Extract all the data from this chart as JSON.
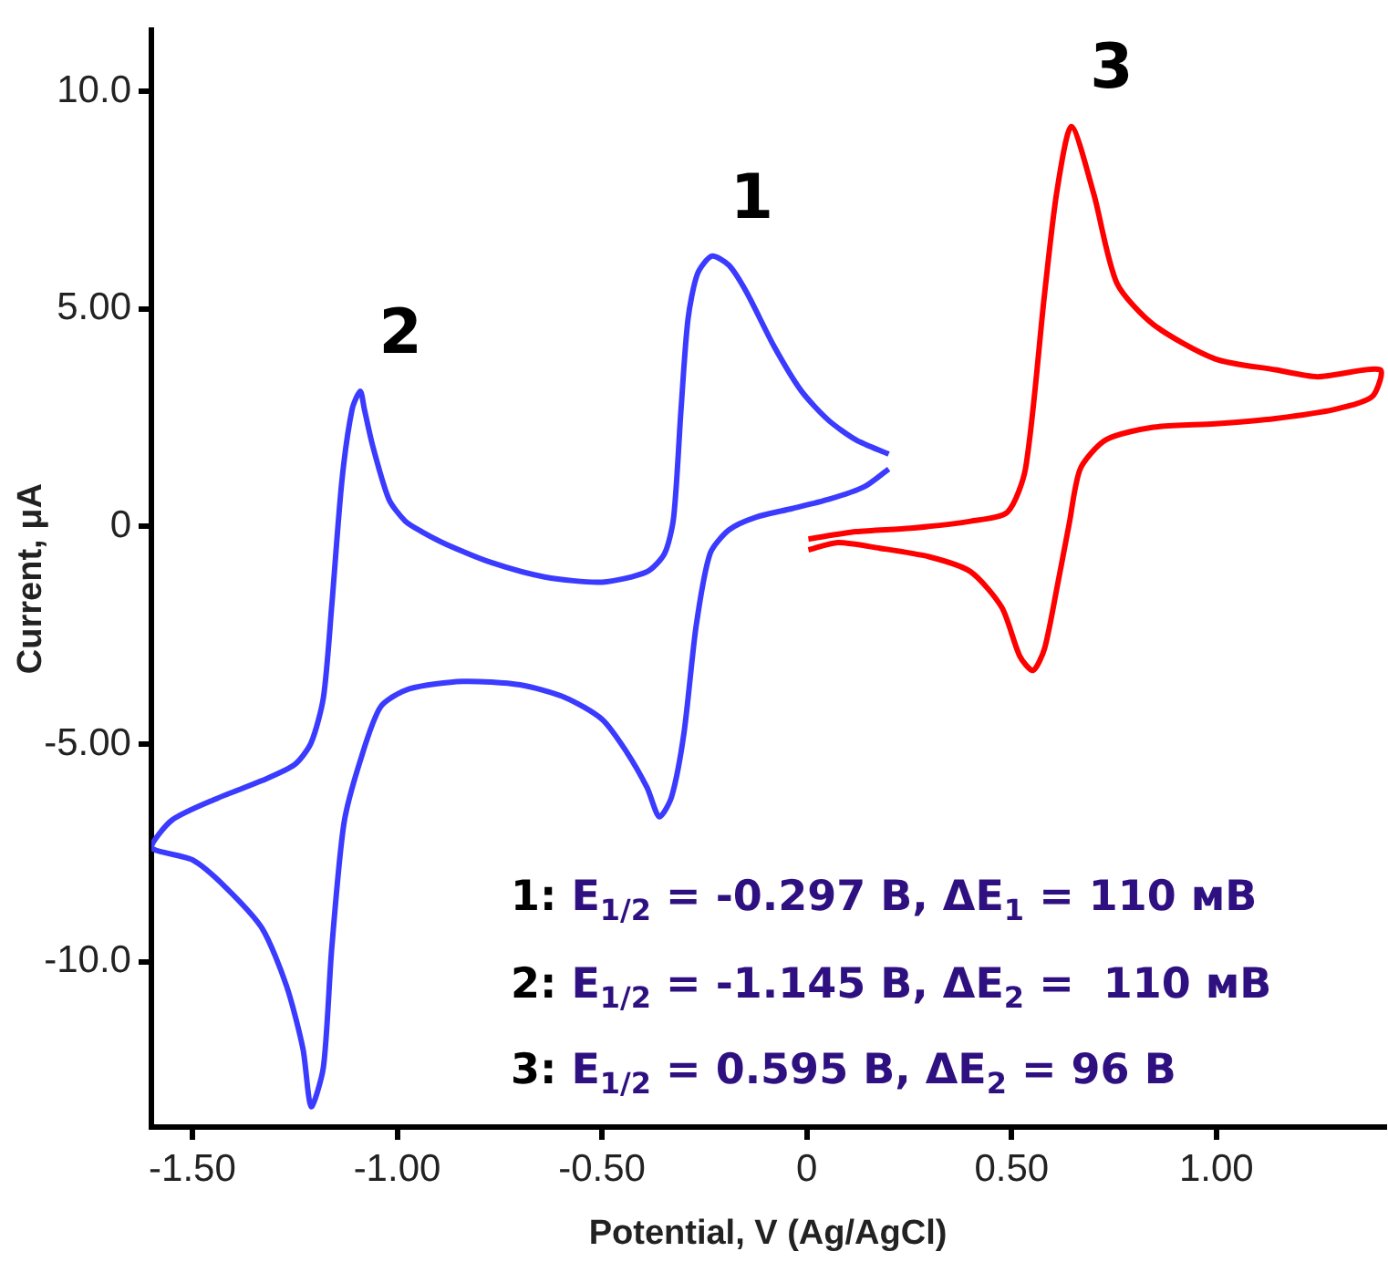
{
  "chart_data": {
    "type": "line",
    "xlabel": "Potential, V (Ag/AgCl)",
    "ylabel": "Current, μA",
    "xlim": [
      -1.6,
      1.41
    ],
    "ylim": [
      -13.8,
      11.4
    ],
    "xticks": [
      {
        "value": -1.5,
        "label": "-1.50"
      },
      {
        "value": -1,
        "label": "-1.00"
      },
      {
        "value": -0.5,
        "label": "-0.50"
      },
      0,
      {
        "value": 0.5,
        "label": "0.50"
      },
      {
        "value": 1,
        "label": "1.00"
      }
    ],
    "yticks": [
      {
        "value": -10,
        "label": "-10.0"
      },
      {
        "value": -5,
        "label": "-5.00"
      },
      0,
      {
        "value": 5,
        "label": "5.00"
      },
      {
        "value": 10,
        "label": "10.0"
      }
    ],
    "grid": false,
    "legend": false,
    "marker": "none",
    "line_style": "solid",
    "series": [
      {
        "color": "#3b3bff",
        "x": [
          0.2,
          0.12,
          0.053,
          -0.013,
          -0.08,
          -0.147,
          -0.19,
          -0.232,
          -0.267,
          -0.29,
          -0.307,
          -0.325,
          -0.347,
          -0.39,
          -0.5,
          -0.64,
          -0.77,
          -0.88,
          -0.94,
          -0.98,
          -1.02,
          -1.06,
          -1.08,
          -1.09,
          -1.11,
          -1.135,
          -1.16,
          -1.18,
          -1.21,
          -1.25,
          -1.33,
          -1.44,
          -1.55,
          -1.6,
          -1.5,
          -1.42,
          -1.33,
          -1.27,
          -1.23,
          -1.21,
          -1.18,
          -1.16,
          -1.13,
          -1.09,
          -1.04,
          -0.97,
          -0.84,
          -0.7,
          -0.59,
          -0.5,
          -0.44,
          -0.39,
          -0.36,
          -0.33,
          -0.3,
          -0.27,
          -0.236,
          -0.19,
          -0.125,
          -0.036,
          0.053,
          0.14,
          0.2
        ],
        "values": [
          1.66,
          1.99,
          2.44,
          3.11,
          4.14,
          5.38,
          6.0,
          6.21,
          5.8,
          4.76,
          2.69,
          0.21,
          -0.62,
          -1.04,
          -1.28,
          -1.16,
          -0.83,
          -0.41,
          -0.12,
          0.12,
          0.62,
          1.86,
          2.69,
          3.11,
          2.69,
          1.04,
          -1.86,
          -3.93,
          -4.97,
          -5.47,
          -5.84,
          -6.25,
          -6.75,
          -7.37,
          -7.66,
          -8.28,
          -9.23,
          -10.56,
          -12.0,
          -13.33,
          -12.42,
          -9.73,
          -6.83,
          -5.38,
          -4.14,
          -3.73,
          -3.56,
          -3.64,
          -3.93,
          -4.43,
          -5.18,
          -6.0,
          -6.67,
          -6.21,
          -4.76,
          -2.28,
          -0.62,
          -0.08,
          0.21,
          0.41,
          0.62,
          0.91,
          1.32
        ]
      },
      {
        "color": "#ff0000",
        "x": [
          0.004,
          0.12,
          0.254,
          0.4,
          0.49,
          0.534,
          0.58,
          0.61,
          0.646,
          0.7,
          0.757,
          0.846,
          0.997,
          1.144,
          1.247,
          1.4,
          1.38,
          1.29,
          1.144,
          0.997,
          0.846,
          0.73,
          0.668,
          0.641,
          0.61,
          0.58,
          0.552,
          0.52,
          0.476,
          0.4,
          0.3,
          0.178,
          0.076,
          0.004
        ],
        "values": [
          -0.29,
          -0.12,
          -0.04,
          0.12,
          0.33,
          1.33,
          5.3,
          7.66,
          9.19,
          7.66,
          5.59,
          4.64,
          3.85,
          3.6,
          3.44,
          3.6,
          2.98,
          2.69,
          2.48,
          2.36,
          2.28,
          1.99,
          1.33,
          0.08,
          -1.45,
          -2.82,
          -3.31,
          -2.98,
          -1.86,
          -1.04,
          -0.7,
          -0.5,
          -0.37,
          -0.54
        ]
      }
    ],
    "annotations": [
      {
        "text": "1",
        "x": -0.232,
        "y": 6.21
      },
      {
        "text": "2",
        "x": -1.09,
        "y": 3.11
      },
      {
        "text": "3",
        "x": 0.646,
        "y": 9.19
      },
      "1: E$_{1/2}$ = -0.297 В, ΔE$_{1}$ = 110 мВ",
      "2: E$_{1/2}$ = -1.145 В, ΔE$_{2}$ =  110 мВ",
      "3: E$_{1/2}$ = 0.595 В, ΔE$_{2}$ = 96 В"
    ]
  }
}
